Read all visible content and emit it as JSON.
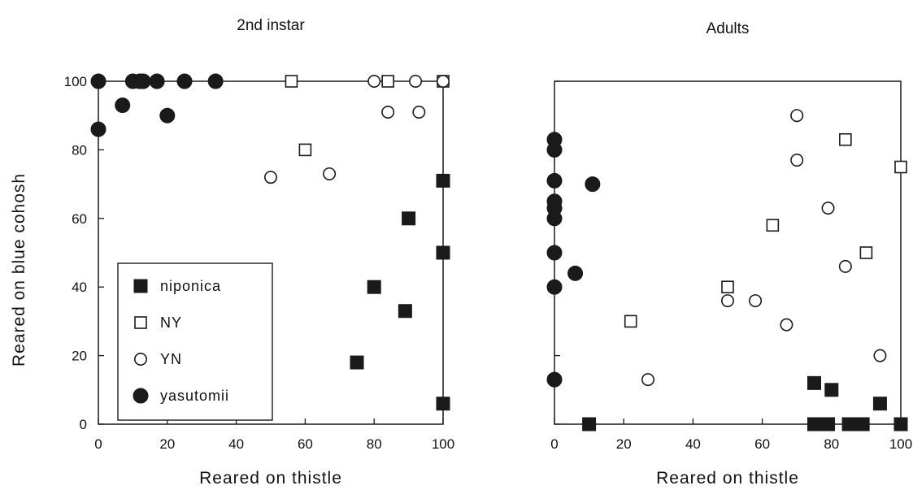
{
  "figure": {
    "ylabel": "Reared on blue cohosh"
  },
  "chart_data": [
    {
      "type": "scatter",
      "title": "2nd instar",
      "xlabel": "Reared on thistle",
      "ylabel": "Reared on blue cohosh",
      "xlim": [
        0,
        100
      ],
      "ylim": [
        0,
        100
      ],
      "xticks": [
        0,
        20,
        40,
        60,
        80,
        100
      ],
      "yticks": [
        0,
        20,
        40,
        60,
        80,
        100
      ],
      "show_y_tick_labels": true,
      "grid": false,
      "legend": {
        "placement": "lower-left"
      },
      "series": [
        {
          "name": "niponica",
          "marker": "filled-square",
          "color": "#1a1a1a",
          "points": [
            [
              75,
              18
            ],
            [
              80,
              40
            ],
            [
              89,
              33
            ],
            [
              90,
              60
            ],
            [
              100,
              71
            ],
            [
              100,
              50
            ],
            [
              100,
              6
            ]
          ]
        },
        {
          "name": "NY",
          "marker": "open-square",
          "color": "#1a1a1a",
          "points": [
            [
              56,
              100
            ],
            [
              60,
              80
            ],
            [
              84,
              100
            ],
            [
              100,
              100
            ]
          ]
        },
        {
          "name": "YN",
          "marker": "open-circle",
          "color": "#1a1a1a",
          "points": [
            [
              50,
              72
            ],
            [
              67,
              73
            ],
            [
              80,
              100
            ],
            [
              84,
              91
            ],
            [
              92,
              100
            ],
            [
              93,
              91
            ],
            [
              100,
              100
            ]
          ]
        },
        {
          "name": "yasutomii",
          "marker": "filled-circle",
          "color": "#1a1a1a",
          "points": [
            [
              0,
              100
            ],
            [
              0,
              86
            ],
            [
              7,
              93
            ],
            [
              10,
              100
            ],
            [
              12,
              100
            ],
            [
              13,
              100
            ],
            [
              17,
              100
            ],
            [
              20,
              90
            ],
            [
              25,
              100
            ],
            [
              34,
              100
            ]
          ]
        }
      ]
    },
    {
      "type": "scatter",
      "title": "Adults",
      "xlabel": "Reared on thistle",
      "xlim": [
        0,
        100
      ],
      "ylim": [
        0,
        100
      ],
      "xticks": [
        0,
        20,
        40,
        60,
        80,
        100
      ],
      "yticks": [
        0,
        20,
        40,
        60,
        80,
        100
      ],
      "show_y_tick_labels": false,
      "grid": false,
      "series": [
        {
          "name": "niponica",
          "marker": "filled-square",
          "color": "#1a1a1a",
          "points": [
            [
              10,
              0
            ],
            [
              75,
              12
            ],
            [
              75,
              0
            ],
            [
              77,
              0
            ],
            [
              79,
              0
            ],
            [
              80,
              10
            ],
            [
              85,
              0
            ],
            [
              87,
              0
            ],
            [
              89,
              0
            ],
            [
              94,
              6
            ],
            [
              100,
              0
            ]
          ]
        },
        {
          "name": "NY",
          "marker": "open-square",
          "color": "#1a1a1a",
          "points": [
            [
              22,
              30
            ],
            [
              50,
              40
            ],
            [
              63,
              58
            ],
            [
              84,
              83
            ],
            [
              90,
              50
            ],
            [
              100,
              75
            ]
          ]
        },
        {
          "name": "YN",
          "marker": "open-circle",
          "color": "#1a1a1a",
          "points": [
            [
              27,
              13
            ],
            [
              50,
              36
            ],
            [
              58,
              36
            ],
            [
              67,
              29
            ],
            [
              70,
              90
            ],
            [
              70,
              77
            ],
            [
              79,
              63
            ],
            [
              84,
              46
            ],
            [
              94,
              20
            ]
          ]
        },
        {
          "name": "yasutomii",
          "marker": "filled-circle",
          "color": "#1a1a1a",
          "points": [
            [
              0,
              83
            ],
            [
              0,
              80
            ],
            [
              0,
              71
            ],
            [
              0,
              65
            ],
            [
              0,
              63
            ],
            [
              0,
              60
            ],
            [
              0,
              50
            ],
            [
              0,
              40
            ],
            [
              0,
              13
            ],
            [
              6,
              44
            ],
            [
              11,
              70
            ]
          ]
        }
      ]
    }
  ]
}
